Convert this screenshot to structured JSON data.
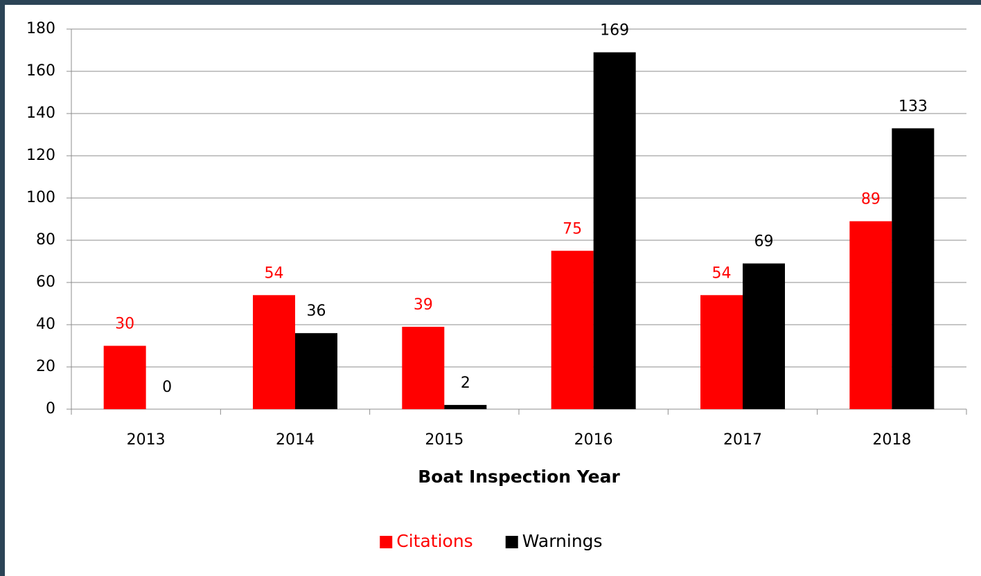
{
  "chart_data": {
    "type": "bar",
    "x_label": "Boat Inspection Year",
    "categories": [
      "2013",
      "2014",
      "2015",
      "2016",
      "2017",
      "2018"
    ],
    "series": [
      {
        "name": "Citations",
        "color": "#ff0000",
        "values": [
          30,
          54,
          39,
          75,
          54,
          89
        ]
      },
      {
        "name": "Warnings",
        "color": "#000000",
        "values": [
          0,
          36,
          2,
          169,
          69,
          133
        ]
      }
    ],
    "ylim": [
      0,
      180
    ],
    "yticks": [
      0,
      20,
      40,
      60,
      80,
      100,
      120,
      140,
      160,
      180
    ],
    "grid": true,
    "legend": "bottom"
  }
}
